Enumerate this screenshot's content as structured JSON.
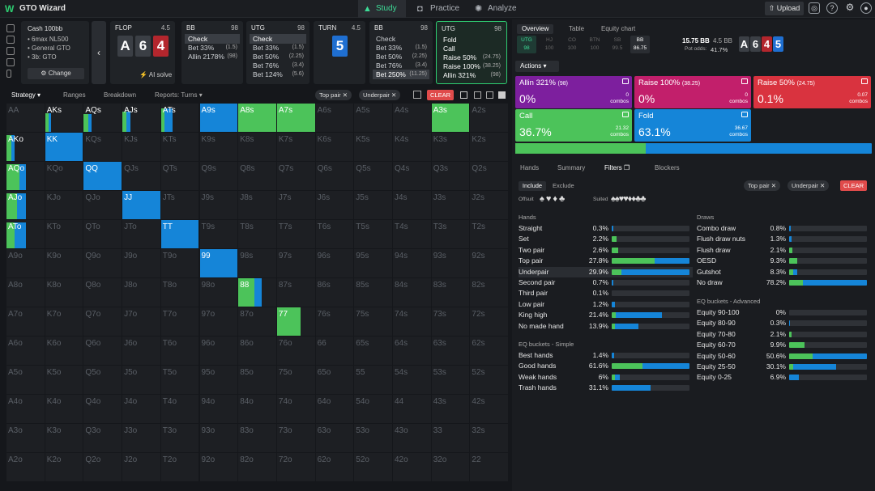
{
  "app": {
    "name": "GTO Wizard",
    "tabs": [
      "Study",
      "Practice",
      "Analyze"
    ],
    "upload": "Upload"
  },
  "game": {
    "title": "Cash 100bb",
    "items": [
      "6max NL500",
      "General GTO",
      "3b: GTO"
    ],
    "change": "Change"
  },
  "nodes": [
    {
      "name": "FLOP",
      "stack": "4.5",
      "cards": [
        "A",
        "6",
        "4"
      ],
      "suits": [
        "s",
        "s",
        "h"
      ],
      "ai": "AI solve"
    },
    {
      "name": "BB",
      "stack": "98",
      "actions": [
        [
          "Check",
          ""
        ],
        [
          "Bet 33%",
          "(1.5)"
        ],
        [
          "Allin 2178%",
          "(98)"
        ]
      ],
      "sel": 0
    },
    {
      "name": "UTG",
      "stack": "98",
      "actions": [
        [
          "Check",
          ""
        ],
        [
          "Bet 33%",
          "(1.5)"
        ],
        [
          "Bet 50%",
          "(2.25)"
        ],
        [
          "Bet 76%",
          "(3.4)"
        ],
        [
          "Bet 124%",
          "(5.6)"
        ]
      ],
      "sel": 0
    },
    {
      "name": "TURN",
      "stack": "4.5",
      "cards": [
        "5"
      ],
      "suits": [
        "d"
      ]
    },
    {
      "name": "BB",
      "stack": "98",
      "actions": [
        [
          "Check",
          ""
        ],
        [
          "Bet 33%",
          "(1.5)"
        ],
        [
          "Bet 50%",
          "(2.25)"
        ],
        [
          "Bet 76%",
          "(3.4)"
        ],
        [
          "Bet 250%",
          "(11.25)"
        ]
      ],
      "sel": 4
    },
    {
      "name": "UTG",
      "stack": "98",
      "actions": [
        [
          "Fold",
          ""
        ],
        [
          "Call",
          ""
        ],
        [
          "Raise 50%",
          "(24.75)"
        ],
        [
          "Raise 100%",
          "(38.25)"
        ],
        [
          "Allin 321%",
          "(98)"
        ]
      ],
      "sel": -1
    }
  ],
  "toolbar": {
    "tabs": [
      "Strategy",
      "Ranges",
      "Breakdown",
      "Reports: Turns"
    ],
    "chips": [
      "Top pair",
      "Underpair"
    ],
    "clear": "CLEAR"
  },
  "grid": {
    "hands": [
      [
        "AA",
        "AKs",
        "AQs",
        "AJs",
        "ATs",
        "A9s",
        "A8s",
        "A7s",
        "A6s",
        "A5s",
        "A4s",
        "A3s",
        "A2s"
      ],
      [
        "AKo",
        "KK",
        "KQs",
        "KJs",
        "KTs",
        "K9s",
        "K8s",
        "K7s",
        "K6s",
        "K5s",
        "K4s",
        "K3s",
        "K2s"
      ],
      [
        "AQo",
        "KQo",
        "QQ",
        "QJs",
        "QTs",
        "Q9s",
        "Q8s",
        "Q7s",
        "Q6s",
        "Q5s",
        "Q4s",
        "Q3s",
        "Q2s"
      ],
      [
        "AJo",
        "KJo",
        "QJo",
        "JJ",
        "JTs",
        "J9s",
        "J8s",
        "J7s",
        "J6s",
        "J5s",
        "J4s",
        "J3s",
        "J2s"
      ],
      [
        "ATo",
        "KTo",
        "QTo",
        "JTo",
        "TT",
        "T9s",
        "T8s",
        "T7s",
        "T6s",
        "T5s",
        "T4s",
        "T3s",
        "T2s"
      ],
      [
        "A9o",
        "K9o",
        "Q9o",
        "J9o",
        "T9o",
        "99",
        "98s",
        "97s",
        "96s",
        "95s",
        "94s",
        "93s",
        "92s"
      ],
      [
        "A8o",
        "K8o",
        "Q8o",
        "J8o",
        "T8o",
        "98o",
        "88",
        "87s",
        "86s",
        "85s",
        "84s",
        "83s",
        "82s"
      ],
      [
        "A7o",
        "K7o",
        "Q7o",
        "J7o",
        "T7o",
        "97o",
        "87o",
        "77",
        "76s",
        "75s",
        "74s",
        "73s",
        "72s"
      ],
      [
        "A6o",
        "K6o",
        "Q6o",
        "J6o",
        "T6o",
        "96o",
        "86o",
        "76o",
        "66",
        "65s",
        "64s",
        "63s",
        "62s"
      ],
      [
        "A5o",
        "K5o",
        "Q5o",
        "J5o",
        "T5o",
        "95o",
        "85o",
        "75o",
        "65o",
        "55",
        "54s",
        "53s",
        "52s"
      ],
      [
        "A4o",
        "K4o",
        "Q4o",
        "J4o",
        "T4o",
        "94o",
        "84o",
        "74o",
        "64o",
        "54o",
        "44",
        "43s",
        "42s"
      ],
      [
        "A3o",
        "K3o",
        "Q3o",
        "J3o",
        "T3o",
        "93o",
        "83o",
        "73o",
        "63o",
        "53o",
        "43o",
        "33",
        "32s"
      ],
      [
        "A2o",
        "K2o",
        "Q2o",
        "J2o",
        "T2o",
        "92o",
        "82o",
        "72o",
        "62o",
        "52o",
        "42o",
        "32o",
        "22"
      ]
    ],
    "fills": {
      "AKs": [
        0.2,
        0.4,
        0.15,
        0.65
      ],
      "AQs": [
        0.25,
        0.4,
        0.2,
        0.6
      ],
      "AJs": [
        0.3,
        0.3,
        0.2,
        0.7
      ],
      "ATs": [
        0.5,
        0.2,
        0.3,
        0.8
      ],
      "A9s": [
        0.9,
        0.0,
        1,
        1
      ],
      "A8s": [
        0,
        1,
        1,
        1
      ],
      "A7s": [
        0,
        1,
        1,
        1
      ],
      "A3s": [
        0,
        1,
        1,
        1
      ],
      "AKo": [
        0.2,
        0.4,
        0.2,
        0.9
      ],
      "KK": [
        1,
        0.0,
        1,
        1
      ],
      "AQo": [
        0.3,
        0.6,
        0.5,
        0.9
      ],
      "QQ": [
        1,
        0,
        1,
        1
      ],
      "AJo": [
        0.4,
        0.5,
        0.5,
        0.9
      ],
      "JJ": [
        1,
        0,
        1,
        1
      ],
      "ATo": [
        0.6,
        0.4,
        0.5,
        0.9
      ],
      "TT": [
        1,
        0,
        1,
        1
      ],
      "99": [
        1,
        0,
        1,
        1
      ],
      "88": [
        0.3,
        0.7,
        0.6,
        1
      ],
      "77": [
        0,
        1,
        0.6,
        1
      ]
    }
  },
  "right": {
    "tabs": [
      "Overview",
      "Table",
      "Equity chart"
    ],
    "positions": [
      [
        "UTG",
        "98"
      ],
      [
        "HJ",
        "100"
      ],
      [
        "CO",
        "100"
      ],
      [
        "BTN",
        "100"
      ],
      [
        "SB",
        "99.5"
      ],
      [
        "BB",
        "86.75"
      ]
    ],
    "pot": "15.75 BB",
    "potsub": "4.5 BB",
    "odds_label": "Pot odds:",
    "odds": "41.7%",
    "board": [
      "A",
      "6",
      "4",
      "5"
    ],
    "boardsuits": [
      "s",
      "s",
      "h",
      "d"
    ],
    "actions_label": "Actions",
    "cards": [
      {
        "name": "Allin 321%",
        "size": "(98)",
        "pct": "0%",
        "combos": "0",
        "color": "#7d1f9e"
      },
      {
        "name": "Raise 100%",
        "size": "(38.25)",
        "pct": "0%",
        "combos": "0",
        "color": "#c21f6b"
      },
      {
        "name": "Raise 50%",
        "size": "(24.75)",
        "pct": "0.1%",
        "combos": "0.07",
        "color": "#d9333f"
      },
      {
        "name": "Call",
        "size": "",
        "pct": "36.7%",
        "combos": "21.32",
        "color": "#4cc35a"
      },
      {
        "name": "Fold",
        "size": "",
        "pct": "63.1%",
        "combos": "36.67",
        "color": "#1585d8"
      }
    ],
    "combos_word": "combos",
    "subtabs": [
      "Hands",
      "Summary",
      "Filters",
      "Blockers"
    ],
    "incl": [
      "Include",
      "Exclude"
    ],
    "offsuit": "Offsuit",
    "suited": "Suited",
    "hands_title": "Hands",
    "draws_title": "Draws",
    "hands": [
      [
        "Straight",
        "0.3%",
        0.0,
        0.02
      ],
      [
        "Set",
        "2.2%",
        0.06,
        0.0
      ],
      [
        "Two pair",
        "2.6%",
        0.08,
        0.0
      ],
      [
        "Top pair",
        "27.8%",
        0.55,
        0.45
      ],
      [
        "Underpair",
        "29.9%",
        0.12,
        0.88
      ],
      [
        "Second pair",
        "0.7%",
        0.0,
        0.02
      ],
      [
        "Third pair",
        "0.1%",
        0,
        0
      ],
      [
        "Low pair",
        "1.2%",
        0.0,
        0.04
      ],
      [
        "King high",
        "21.4%",
        0.05,
        0.6
      ],
      [
        "No made hand",
        "13.9%",
        0.04,
        0.3
      ]
    ],
    "eq_simple": "EQ buckets - Simple",
    "simple": [
      [
        "Best hands",
        "1.4%",
        0.0,
        0.03
      ],
      [
        "Good hands",
        "61.6%",
        0.4,
        0.6
      ],
      [
        "Weak hands",
        "6%",
        0.04,
        0.06
      ],
      [
        "Trash hands",
        "31.1%",
        0.0,
        0.5
      ]
    ],
    "draws": [
      [
        "Combo draw",
        "0.8%",
        0,
        0.02
      ],
      [
        "Flush draw nuts",
        "1.3%",
        0.0,
        0.03
      ],
      [
        "Flush draw",
        "2.1%",
        0.04,
        0.0
      ],
      [
        "OESD",
        "9.3%",
        0.1,
        0.0
      ],
      [
        "Gutshot",
        "8.3%",
        0.05,
        0.05
      ],
      [
        "No draw",
        "78.2%",
        0.18,
        0.82
      ]
    ],
    "eq_adv": "EQ buckets - Advanced",
    "adv": [
      [
        "Equity 90-100",
        "0%",
        0,
        0
      ],
      [
        "Equity 80-90",
        "0.3%",
        0,
        0.01
      ],
      [
        "Equity 70-80",
        "2.1%",
        0.03,
        0.0
      ],
      [
        "Equity 60-70",
        "9.9%",
        0.2,
        0.0
      ],
      [
        "Equity 50-60",
        "50.6%",
        0.3,
        0.7
      ],
      [
        "Equity 25-50",
        "30.1%",
        0.05,
        0.55
      ],
      [
        "Equity 0-25",
        "6.9%",
        0.0,
        0.13
      ]
    ]
  },
  "colors": {
    "call": "#4cc35a",
    "fold": "#1585d8",
    "accent": "#3ddc97"
  }
}
